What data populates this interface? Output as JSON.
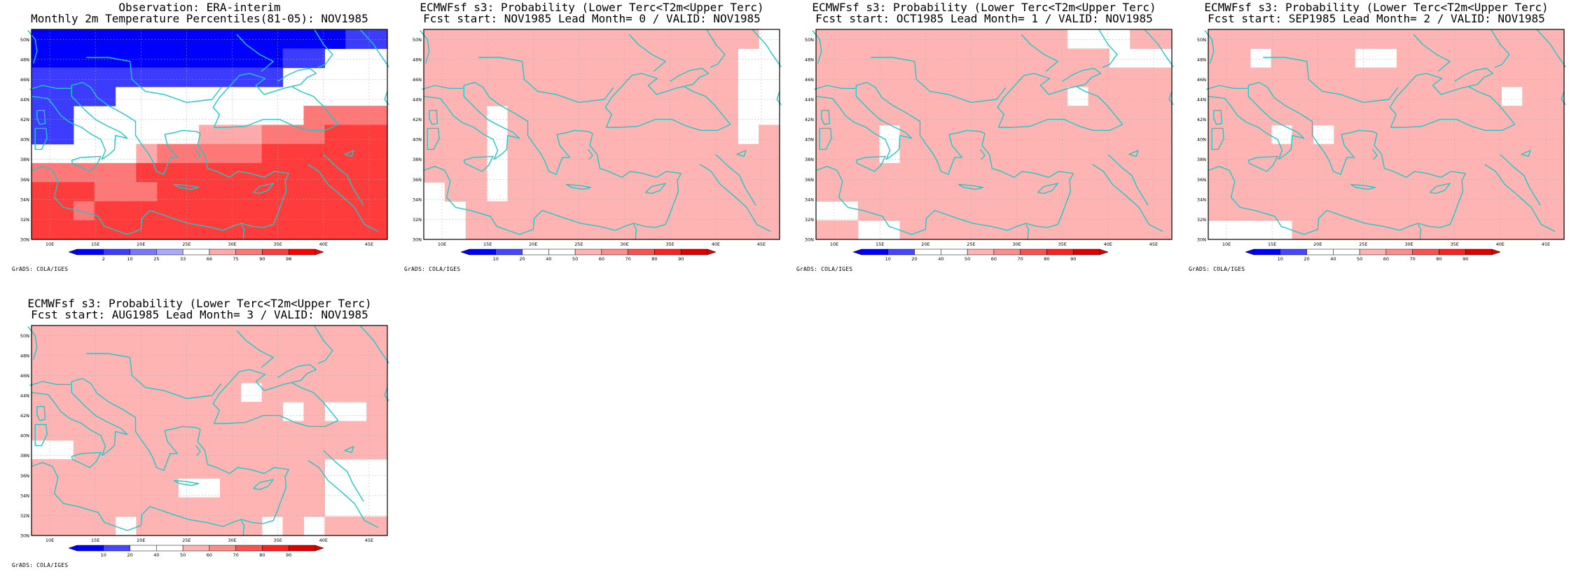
{
  "app": {
    "credit": "GrADS: COLA/IGES"
  },
  "map": {
    "lon_labels": [
      "10E",
      "15E",
      "20E",
      "25E",
      "30E",
      "35E",
      "40E",
      "45E"
    ],
    "lat_labels": [
      "30N",
      "32N",
      "34N",
      "36N",
      "38N",
      "40N",
      "42N",
      "44N",
      "46N",
      "48N",
      "50N"
    ],
    "lon_range": [
      8,
      47
    ],
    "lat_range": [
      30,
      51
    ]
  },
  "colors": {
    "coastline": "#1fc7c7",
    "grid": "#aaaaaa",
    "obs_scale": [
      "#0000ff",
      "#3c3cff",
      "#7878ff",
      "#aaaaff",
      "#ffffff",
      "#ffaaaa",
      "#ff7878",
      "#ff3c3c",
      "#ff0000"
    ],
    "prob_scale": [
      "#0000ff",
      "#4646ff",
      "#ffffff",
      "#ffffff",
      "#ffb4b4",
      "#ff8c8c",
      "#ff5050",
      "#ff2020",
      "#e00000"
    ]
  },
  "panels": [
    {
      "id": "obs",
      "title1": "Observation: ERA-interim",
      "title2": "Monthly 2m Temperature Percentiles(81-05): NOV1985",
      "scale": "obs",
      "legend_labels": [
        "2",
        "10",
        "25",
        "33",
        "66",
        "75",
        "90",
        "98"
      ],
      "grid_rows": [
        "00000000000000011",
        "00000000000011444",
        "11111111111144444",
        "11114444444444444",
        "11444444444446666",
        "11444444555666777",
        "44444566666777777",
        "66666777777777777",
        "77766677777777777",
        "77677777777777777",
        "77777777777777777"
      ]
    },
    {
      "id": "lead0",
      "title1": "ECMWFsf s3: Probability (Lower Terc<T2m<Upper Terc)",
      "title2": "Fcst start: NOV1985  Lead Month= 0 / VALID: NOV1985",
      "scale": "prob",
      "legend_labels": [
        "10",
        "20",
        "40",
        "50",
        "60",
        "70",
        "80",
        "90"
      ],
      "grid_rows": [
        "44444444444444442",
        "44444444444444422",
        "44444444444444422",
        "44444444444444422",
        "44424444444444422",
        "44424444444444424",
        "44424444444444444",
        "44424444444444444",
        "24424444444444444",
        "22444444444444444",
        "22444444444444444"
      ]
    },
    {
      "id": "lead1",
      "title1": "ECMWFsf s3: Probability (Lower Terc<T2m<Upper Terc)",
      "title2": "Fcst start: OCT1985  Lead Month= 1 / VALID: NOV1985",
      "scale": "prob",
      "legend_labels": [
        "10",
        "20",
        "40",
        "50",
        "60",
        "70",
        "80",
        "90"
      ],
      "grid_rows": [
        "44444444444422244",
        "44444444444444222",
        "44444444444444444",
        "44444444444424444",
        "44444444444444444",
        "44434444444444444",
        "44434444444444444",
        "44444444444444444",
        "44444444444444444",
        "22444444444444444",
        "44224444444444444"
      ]
    },
    {
      "id": "lead2",
      "title1": "ECMWFsf s3: Probability (Lower Terc<T2m<Upper Terc)",
      "title2": "Fcst start: SEP1985  Lead Month= 2 / VALID: NOV1985",
      "scale": "prob",
      "legend_labels": [
        "10",
        "20",
        "40",
        "50",
        "60",
        "70",
        "80",
        "90"
      ],
      "grid_rows": [
        "44444444444444444",
        "44244442244444444",
        "44444444444444444",
        "44444444444444244",
        "44444444444444444",
        "44424244444444444",
        "44444444444444444",
        "44444444444444444",
        "44444444444444444",
        "44444444444444444",
        "22224444444444444"
      ]
    },
    {
      "id": "lead3",
      "title1": "ECMWFsf s3: Probability (Lower Terc<T2m<Upper Terc)",
      "title2": "Fcst start: AUG1985  Lead Month= 3 / VALID: NOV1985",
      "scale": "prob",
      "legend_labels": [
        "10",
        "20",
        "40",
        "50",
        "60",
        "70",
        "80",
        "90"
      ],
      "grid_rows": [
        "44444444444444444",
        "44444444444444444",
        "44444444444444444",
        "44444444442444444",
        "44444444444424224",
        "44444444444444444",
        "22444444444444444",
        "44444444444444222",
        "44444442244444222",
        "44444444444444222",
        "44442444444242444"
      ]
    }
  ]
}
